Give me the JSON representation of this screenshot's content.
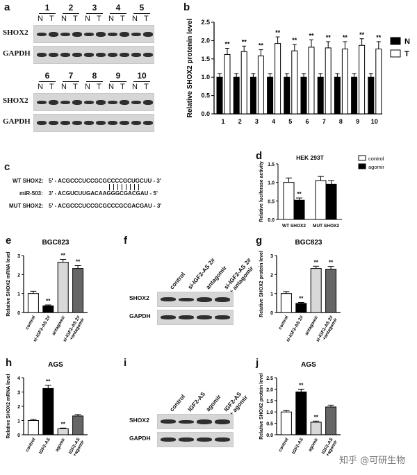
{
  "panels": {
    "a": {
      "label": "a",
      "lanes_top": [
        "1",
        "2",
        "3",
        "4",
        "5"
      ],
      "lanes_bottom": [
        "6",
        "7",
        "8",
        "9",
        "10"
      ],
      "n": "N",
      "t": "T",
      "row1": "SHOX2",
      "row2": "GAPDH"
    },
    "b": {
      "label": "b",
      "ylabel": "Relative SHOX2  protenin  level",
      "legend_n": "N",
      "legend_t": "T"
    },
    "c": {
      "label": "c",
      "wt_label": "WT SHOX2:",
      "wt_seq": "5' - ACGCCCUCCGCGCCCCGCUGCUU - 3'",
      "mir_label": "miR-503:",
      "mir_seq": "3' - ACGUCUUGACAAGGGCGACGAU - 5'",
      "mut_label": "MUT SHOX2:",
      "mut_seq": "5' - ACGCCCUCCGCGCCCGCGACGAU - 3'"
    },
    "d": {
      "label": "d",
      "title": "HEK 293T",
      "ylabel": "Relative luciferase activity",
      "legend_control": "control",
      "legend_agomir": "agomir"
    },
    "e": {
      "label": "e",
      "title": "BGC823",
      "ylabel": "Relative SHOX2 mRNA level"
    },
    "f": {
      "label": "f",
      "lanes": [
        "control",
        "si-IGF2-AS 2#",
        "antagomir",
        "si-IGF2-AS 2#\n+ antagomir"
      ],
      "row1": "SHOX2",
      "row2": "GAPDH"
    },
    "g": {
      "label": "g",
      "title": "BGC823",
      "ylabel": "Relative SHOX2 protein level"
    },
    "h": {
      "label": "h",
      "title": "AGS",
      "ylabel": "Relative SHOX2 mRNA level"
    },
    "i": {
      "label": "i",
      "lanes": [
        "control",
        "IGF2-AS",
        "agomir",
        "IGF2-AS\n+ agomir"
      ],
      "row1": "SHOX2",
      "row2": "GAPDH"
    },
    "j": {
      "label": "j",
      "title": "AGS",
      "ylabel": "Relative SHOX2 protein level"
    }
  },
  "watermark": "知乎 @可研生物",
  "chart_data": [
    {
      "id": "b",
      "type": "bar",
      "categories": [
        "1",
        "2",
        "3",
        "4",
        "5",
        "6",
        "7",
        "8",
        "9",
        "10"
      ],
      "series": [
        {
          "name": "N",
          "values": [
            1,
            1,
            1,
            1,
            1,
            1,
            1,
            1,
            1,
            1
          ],
          "err": [
            0.1,
            0.1,
            0.1,
            0.1,
            0.1,
            0.1,
            0.1,
            0.1,
            0.1,
            0.1
          ],
          "color": "#000000"
        },
        {
          "name": "T",
          "values": [
            1.62,
            1.7,
            1.58,
            1.92,
            1.72,
            1.82,
            1.8,
            1.77,
            1.87,
            1.77
          ],
          "err": [
            0.17,
            0.15,
            0.17,
            0.18,
            0.17,
            0.2,
            0.17,
            0.2,
            0.18,
            0.2
          ],
          "color": "#ffffff"
        }
      ],
      "sig": [
        "**",
        "**",
        "**",
        "**",
        "**",
        "**",
        "**",
        "**",
        "**",
        "**"
      ],
      "ylabel": "Relative SHOX2  protenin  level",
      "ylim": [
        0,
        2.5
      ],
      "yticks": [
        "0.0",
        "0.5",
        "1.0",
        "1.5",
        "2.0",
        "2.5"
      ]
    },
    {
      "id": "d",
      "type": "bar",
      "categories": [
        "WT SHOX2",
        "MUT SHOX2"
      ],
      "series": [
        {
          "name": "control",
          "values": [
            1.0,
            1.05
          ],
          "err": [
            0.12,
            0.11
          ],
          "color": "#ffffff"
        },
        {
          "name": "agomir",
          "values": [
            0.52,
            0.95
          ],
          "err": [
            0.06,
            0.1
          ],
          "color": "#000000"
        }
      ],
      "sig": [
        "**",
        ""
      ],
      "title": "HEK 293T",
      "ylabel": "Relative luciferase activity",
      "ylim": [
        0,
        1.5
      ],
      "yticks": [
        "0.0",
        "0.5",
        "1.0",
        "1.5"
      ]
    },
    {
      "id": "e",
      "type": "bar",
      "categories": [
        "control",
        "si-IGF2-AS 2#",
        "antagomir",
        "si-IGF2-AS 2#\n+antagomir"
      ],
      "values": [
        1.0,
        0.35,
        2.65,
        2.32
      ],
      "err": [
        0.12,
        0.05,
        0.15,
        0.15
      ],
      "colors": [
        "#ffffff",
        "#000000",
        "#d8d8d8",
        "#666666"
      ],
      "sig": [
        "",
        "**",
        "**",
        "**"
      ],
      "title": "BGC823",
      "ylabel": "Relative SHOX2 mRNA level",
      "ylim": [
        0,
        3
      ],
      "yticks": [
        "0",
        "1",
        "2",
        "3"
      ]
    },
    {
      "id": "g",
      "type": "bar",
      "categories": [
        "control",
        "si-IGF2-AS 2#",
        "antagomir",
        "si-IGF2-AS 2#\n+antagomir"
      ],
      "values": [
        1.0,
        0.48,
        2.32,
        2.28
      ],
      "err": [
        0.1,
        0.05,
        0.12,
        0.15
      ],
      "colors": [
        "#ffffff",
        "#000000",
        "#d8d8d8",
        "#666666"
      ],
      "sig": [
        "",
        "**",
        "**",
        "**"
      ],
      "title": "BGC823",
      "ylabel": "Relative SHOX2 protein level",
      "ylim": [
        0,
        3
      ],
      "yticks": [
        "0",
        "1",
        "2",
        "3"
      ]
    },
    {
      "id": "h",
      "type": "bar",
      "categories": [
        "control",
        "IGF2-AS",
        "agomir",
        "IGF2-AS\n+agomir"
      ],
      "values": [
        1.0,
        3.25,
        0.42,
        1.32
      ],
      "err": [
        0.08,
        0.22,
        0.05,
        0.1
      ],
      "colors": [
        "#ffffff",
        "#000000",
        "#d8d8d8",
        "#666666"
      ],
      "sig": [
        "",
        "**",
        "**",
        ""
      ],
      "title": "AGS",
      "ylabel": "Relative SHOX2 mRNA level",
      "ylim": [
        0,
        4
      ],
      "yticks": [
        "0",
        "1",
        "2",
        "3",
        "4"
      ]
    },
    {
      "id": "j",
      "type": "bar",
      "categories": [
        "control",
        "IGF2-AS",
        "agomir",
        "IGF2-AS\n+agomir"
      ],
      "values": [
        1.0,
        1.88,
        0.55,
        1.22
      ],
      "err": [
        0.06,
        0.12,
        0.05,
        0.08
      ],
      "colors": [
        "#ffffff",
        "#000000",
        "#d8d8d8",
        "#666666"
      ],
      "sig": [
        "",
        "**",
        "**",
        ""
      ],
      "title": "AGS",
      "ylabel": "Relative SHOX2 protein level",
      "ylim": [
        0,
        2.5
      ],
      "yticks": [
        "0.0",
        "0.5",
        "1.0",
        "1.5",
        "2.0",
        "2.5"
      ]
    }
  ]
}
